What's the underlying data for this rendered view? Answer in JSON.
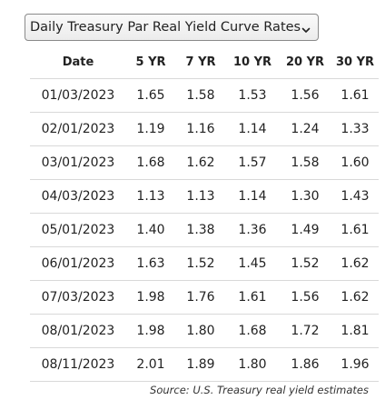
{
  "selector": {
    "label": "Daily Treasury Par Real Yield Curve Rates",
    "icon": "chevron-down-icon"
  },
  "table": {
    "headers": [
      "Date",
      "5 YR",
      "7 YR",
      "10 YR",
      "20 YR",
      "30 YR"
    ],
    "rows": [
      [
        "01/03/2023",
        "1.65",
        "1.58",
        "1.53",
        "1.56",
        "1.61"
      ],
      [
        "02/01/2023",
        "1.19",
        "1.16",
        "1.14",
        "1.24",
        "1.33"
      ],
      [
        "03/01/2023",
        "1.68",
        "1.62",
        "1.57",
        "1.58",
        "1.60"
      ],
      [
        "04/03/2023",
        "1.13",
        "1.13",
        "1.14",
        "1.30",
        "1.43"
      ],
      [
        "05/01/2023",
        "1.40",
        "1.38",
        "1.36",
        "1.49",
        "1.61"
      ],
      [
        "06/01/2023",
        "1.63",
        "1.52",
        "1.45",
        "1.52",
        "1.62"
      ],
      [
        "07/03/2023",
        "1.98",
        "1.76",
        "1.61",
        "1.56",
        "1.62"
      ],
      [
        "08/01/2023",
        "1.98",
        "1.80",
        "1.68",
        "1.72",
        "1.81"
      ],
      [
        "08/11/2023",
        "2.01",
        "1.89",
        "1.80",
        "1.86",
        "1.96"
      ]
    ]
  },
  "caption": "Source: U.S. Treasury real yield estimates"
}
